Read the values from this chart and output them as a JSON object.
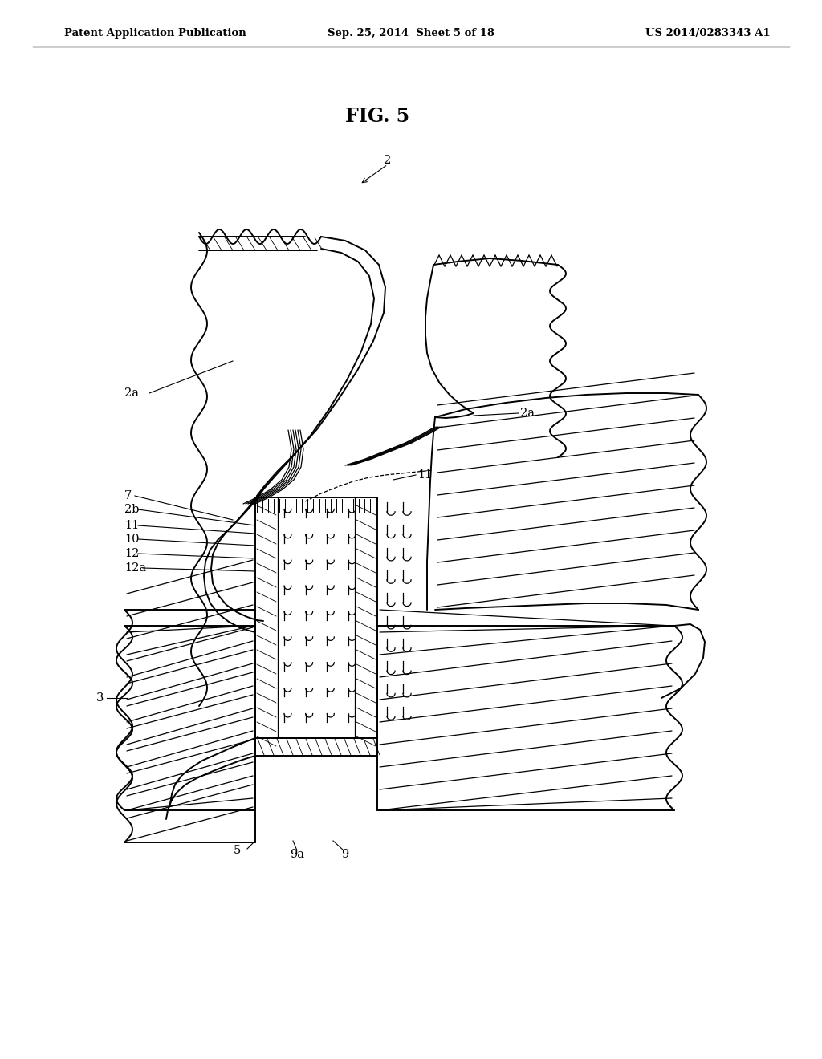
{
  "header_left": "Patent Application Publication",
  "header_center": "Sep. 25, 2014  Sheet 5 of 18",
  "header_right": "US 2014/0283343 A1",
  "figure_label": "FIG. 5",
  "background_color": "#ffffff",
  "line_color": "#000000",
  "label_fontsize": 10.5,
  "header_fontsize": 9.5,
  "fig_label_fontsize": 17
}
